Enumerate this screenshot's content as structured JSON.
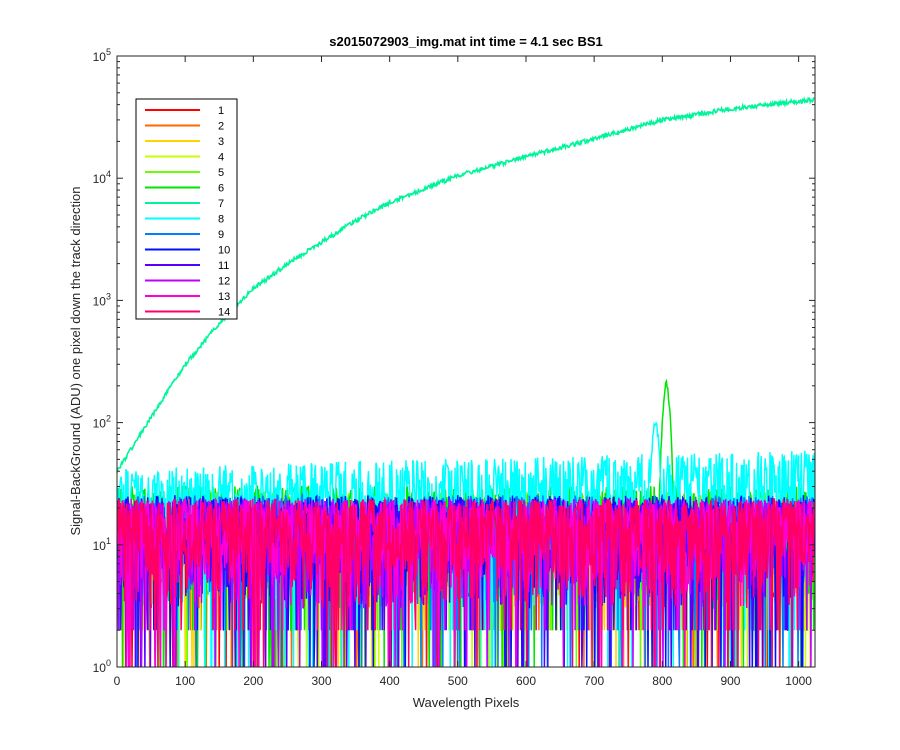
{
  "chart_data": {
    "type": "line",
    "title": "s2015072903_img.mat int time = 4.1 sec   BS1",
    "xlabel": "Wavelength Pixels",
    "ylabel": "Signal-BackGround (ADU) one pixel down the track direction",
    "xlim": [
      0,
      1024
    ],
    "ylim": [
      1,
      100000
    ],
    "yscale": "log",
    "grid": false,
    "legend_position": "top-left",
    "x_ticks": [
      "0",
      "100",
      "200",
      "300",
      "400",
      "500",
      "600",
      "700",
      "800",
      "900",
      "1000"
    ],
    "y_ticks": [
      {
        "base": "10",
        "exp": "0"
      },
      {
        "base": "10",
        "exp": "1"
      },
      {
        "base": "10",
        "exp": "2"
      },
      {
        "base": "10",
        "exp": "3"
      },
      {
        "base": "10",
        "exp": "4"
      },
      {
        "base": "10",
        "exp": "5"
      }
    ],
    "series": [
      {
        "name": "1",
        "color": "#ff0000",
        "noise_level": 14,
        "noise_max": 35
      },
      {
        "name": "2",
        "color": "#ff6a00",
        "noise_level": 14,
        "noise_max": 35
      },
      {
        "name": "3",
        "color": "#ffd400",
        "noise_level": 14,
        "noise_max": 38
      },
      {
        "name": "4",
        "color": "#c8ff00",
        "noise_level": 15,
        "noise_max": 40
      },
      {
        "name": "5",
        "color": "#6aff00",
        "noise_level": 16,
        "noise_max": 45
      },
      {
        "name": "6",
        "color": "#00e600",
        "noise_level": 18,
        "noise_max": 55,
        "peak": {
          "x": 806,
          "value": 220
        }
      },
      {
        "name": "7",
        "color": "#00f59a",
        "trend": [
          {
            "x": 0,
            "y": 40
          },
          {
            "x": 50,
            "y": 110
          },
          {
            "x": 100,
            "y": 300
          },
          {
            "x": 150,
            "y": 650
          },
          {
            "x": 200,
            "y": 1250
          },
          {
            "x": 250,
            "y": 2000
          },
          {
            "x": 300,
            "y": 3000
          },
          {
            "x": 350,
            "y": 4500
          },
          {
            "x": 400,
            "y": 6300
          },
          {
            "x": 500,
            "y": 10500
          },
          {
            "x": 600,
            "y": 15000
          },
          {
            "x": 700,
            "y": 21000
          },
          {
            "x": 800,
            "y": 30000
          },
          {
            "x": 900,
            "y": 37000
          },
          {
            "x": 1024,
            "y": 44000
          }
        ]
      },
      {
        "name": "8",
        "color": "#00ffff",
        "noise_level": 25,
        "noise_max": 80,
        "peak": {
          "x": 790,
          "value": 110
        }
      },
      {
        "name": "9",
        "color": "#0080ff",
        "noise_level": 15,
        "noise_max": 40
      },
      {
        "name": "10",
        "color": "#0011ff",
        "noise_level": 15,
        "noise_max": 40
      },
      {
        "name": "11",
        "color": "#5500ff",
        "noise_level": 14,
        "noise_max": 38
      },
      {
        "name": "12",
        "color": "#c000ff",
        "noise_level": 14,
        "noise_max": 38
      },
      {
        "name": "13",
        "color": "#ff00d4",
        "noise_level": 14,
        "noise_max": 38
      },
      {
        "name": "14",
        "color": "#ff0066",
        "noise_level": 14,
        "noise_max": 38
      }
    ]
  }
}
